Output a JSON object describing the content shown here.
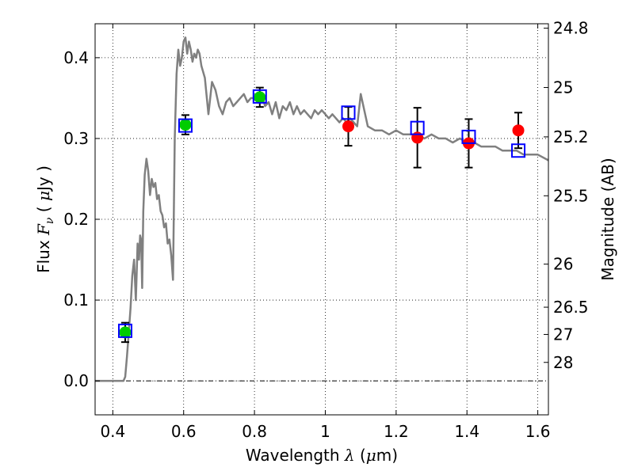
{
  "chart_data": {
    "type": "scatter",
    "xlabel": {
      "prefix": "Wavelength  ",
      "symbol": "λ",
      "unit_open": " (",
      "unit_mu": "μ",
      "unit_rest": "m)"
    },
    "ylabel": {
      "prefix": "Flux  ",
      "symbol": "F",
      "subscript": "ν",
      "unit_open": " ( ",
      "unit_mu": "μ",
      "unit_rest": "Jy )"
    },
    "y2label": "Magnitude (AB)",
    "xlim": [
      0.35,
      1.63
    ],
    "ylim": [
      -0.042,
      0.442
    ],
    "xticks": [
      0.4,
      0.6,
      0.8,
      1.0,
      1.2,
      1.4,
      1.6
    ],
    "xtick_labels": [
      "0.4",
      "0.6",
      "0.8",
      "1",
      "1.2",
      "1.4",
      "1.6"
    ],
    "yticks": [
      0.0,
      0.1,
      0.2,
      0.3,
      0.4
    ],
    "ytick_labels": [
      "0.0",
      "0.1",
      "0.2",
      "0.3",
      "0.4"
    ],
    "y2ticks": [
      {
        "label": "24.8",
        "flux": 0.4365
      },
      {
        "label": "25",
        "flux": 0.3631
      },
      {
        "label": "25.2",
        "flux": 0.302
      },
      {
        "label": "25.5",
        "flux": 0.2291
      },
      {
        "label": "26",
        "flux": 0.1445
      },
      {
        "label": "26.5",
        "flux": 0.0912
      },
      {
        "label": "27",
        "flux": 0.0575
      },
      {
        "label": "28",
        "flux": 0.0229
      }
    ],
    "grid": true,
    "colors": {
      "model": "#808080",
      "green": "#00cc00",
      "red": "#ff0000",
      "blue": "#0000ff",
      "errorbar": "#000000"
    },
    "model_spectrum": {
      "x": [
        0.35,
        0.43,
        0.435,
        0.44,
        0.445,
        0.45,
        0.455,
        0.46,
        0.465,
        0.468,
        0.47,
        0.474,
        0.477,
        0.48,
        0.483,
        0.486,
        0.49,
        0.495,
        0.5,
        0.505,
        0.51,
        0.515,
        0.52,
        0.525,
        0.53,
        0.535,
        0.54,
        0.545,
        0.55,
        0.555,
        0.56,
        0.565,
        0.57,
        0.575,
        0.58,
        0.585,
        0.59,
        0.595,
        0.6,
        0.605,
        0.61,
        0.615,
        0.62,
        0.625,
        0.63,
        0.635,
        0.64,
        0.645,
        0.65,
        0.66,
        0.67,
        0.68,
        0.69,
        0.7,
        0.71,
        0.72,
        0.73,
        0.74,
        0.75,
        0.76,
        0.77,
        0.78,
        0.79,
        0.8,
        0.81,
        0.82,
        0.83,
        0.84,
        0.85,
        0.86,
        0.87,
        0.88,
        0.89,
        0.9,
        0.91,
        0.92,
        0.93,
        0.94,
        0.95,
        0.96,
        0.97,
        0.98,
        0.99,
        1.0,
        1.01,
        1.02,
        1.03,
        1.04,
        1.05,
        1.06,
        1.07,
        1.08,
        1.09,
        1.1,
        1.12,
        1.14,
        1.16,
        1.18,
        1.2,
        1.22,
        1.24,
        1.26,
        1.28,
        1.3,
        1.32,
        1.34,
        1.36,
        1.38,
        1.4,
        1.42,
        1.44,
        1.46,
        1.48,
        1.5,
        1.52,
        1.54,
        1.56,
        1.58,
        1.6,
        1.63
      ],
      "y": [
        0.0,
        0.0,
        0.005,
        0.03,
        0.06,
        0.09,
        0.13,
        0.15,
        0.1,
        0.14,
        0.17,
        0.15,
        0.18,
        0.175,
        0.115,
        0.21,
        0.255,
        0.275,
        0.26,
        0.23,
        0.25,
        0.24,
        0.245,
        0.225,
        0.23,
        0.21,
        0.205,
        0.19,
        0.195,
        0.17,
        0.175,
        0.155,
        0.125,
        0.3,
        0.38,
        0.41,
        0.39,
        0.4,
        0.42,
        0.425,
        0.405,
        0.42,
        0.41,
        0.395,
        0.405,
        0.4,
        0.41,
        0.405,
        0.39,
        0.375,
        0.33,
        0.37,
        0.36,
        0.34,
        0.33,
        0.345,
        0.35,
        0.34,
        0.345,
        0.35,
        0.355,
        0.345,
        0.35,
        0.35,
        0.345,
        0.355,
        0.34,
        0.345,
        0.33,
        0.345,
        0.325,
        0.34,
        0.335,
        0.345,
        0.33,
        0.34,
        0.33,
        0.335,
        0.33,
        0.325,
        0.335,
        0.33,
        0.335,
        0.33,
        0.325,
        0.33,
        0.325,
        0.32,
        0.325,
        0.32,
        0.325,
        0.32,
        0.315,
        0.355,
        0.315,
        0.31,
        0.31,
        0.305,
        0.31,
        0.305,
        0.305,
        0.305,
        0.3,
        0.305,
        0.3,
        0.3,
        0.295,
        0.3,
        0.295,
        0.295,
        0.29,
        0.29,
        0.29,
        0.285,
        0.285,
        0.285,
        0.28,
        0.28,
        0.28,
        0.273
      ]
    },
    "model_photometry": {
      "name": "",
      "x": [
        0.435,
        0.605,
        0.815,
        1.065,
        1.26,
        1.405,
        1.545
      ],
      "y": [
        0.062,
        0.316,
        0.352,
        0.332,
        0.313,
        0.302,
        0.285
      ]
    },
    "observed_green": {
      "x": [
        0.435,
        0.605,
        0.815
      ],
      "y": [
        0.06,
        0.317,
        0.351
      ],
      "yerr": [
        0.012,
        0.012,
        0.012
      ]
    },
    "observed_red": {
      "x": [
        1.065,
        1.26,
        1.405,
        1.545
      ],
      "y": [
        0.315,
        0.301,
        0.294,
        0.31
      ],
      "yerr": [
        0.024,
        0.037,
        0.03,
        0.022
      ]
    }
  }
}
